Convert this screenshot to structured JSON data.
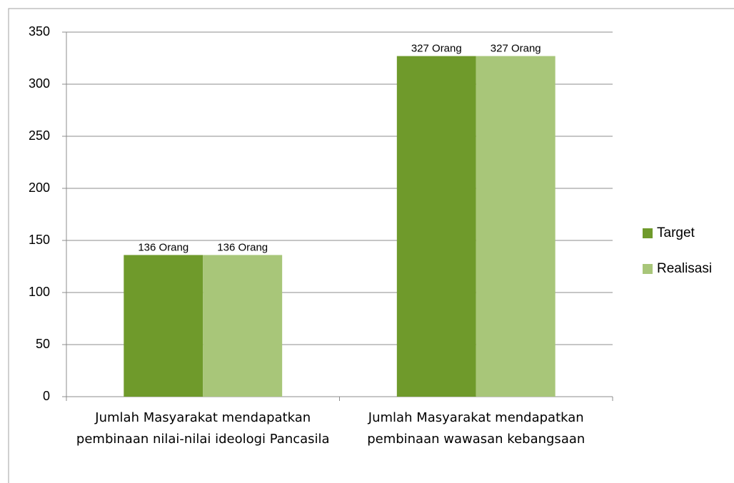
{
  "chart_data": {
    "type": "bar",
    "categories": [
      "Jumlah Masyarakat mendapatkan pembinaan nilai-nilai ideologi Pancasila",
      "Jumlah Masyarakat mendapatkan pembinaan wawasan kebangsaan"
    ],
    "series": [
      {
        "name": "Target",
        "color": "#6f9a2b",
        "values": [
          136,
          327
        ],
        "value_labels": [
          "136 Orang",
          "327 Orang"
        ]
      },
      {
        "name": "Realisasi",
        "color": "#a8c679",
        "values": [
          136,
          327
        ],
        "value_labels": [
          "136 Orang",
          "327 Orang"
        ]
      }
    ],
    "ylim": [
      0,
      350
    ],
    "yticks": [
      0,
      50,
      100,
      150,
      200,
      250,
      300,
      350
    ],
    "grid": true,
    "legend": "right"
  }
}
